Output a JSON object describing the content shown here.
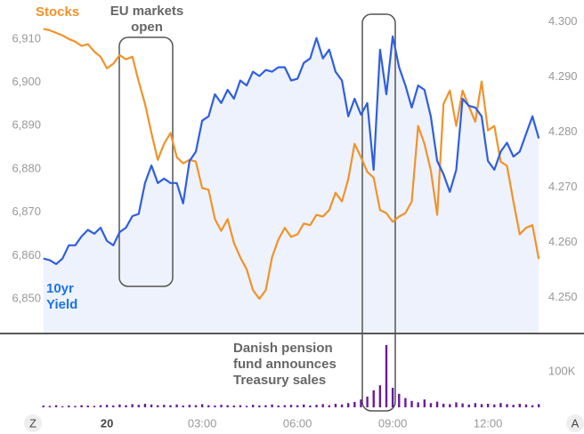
{
  "chart_data": [
    {
      "type": "line",
      "annotations": [
        "EU markets open",
        "Danish pension fund announces Treasury sales"
      ],
      "x": [
        -2.0,
        -1.8,
        -1.6,
        -1.4,
        -1.2,
        -1.0,
        -0.8,
        -0.6,
        -0.4,
        -0.2,
        0,
        0.2,
        0.4,
        0.6,
        0.8,
        1.0,
        1.2,
        1.4,
        1.6,
        1.8,
        2.0,
        2.2,
        2.4,
        2.6,
        2.8,
        3.0,
        3.2,
        3.4,
        3.6,
        3.8,
        4.0,
        4.2,
        4.4,
        4.6,
        4.8,
        5.0,
        5.2,
        5.4,
        5.6,
        5.8,
        6.0,
        6.2,
        6.4,
        6.6,
        6.8,
        7.0,
        7.2,
        7.4,
        7.6,
        7.8,
        8.0,
        8.2,
        8.4,
        8.6,
        8.8,
        9.0,
        9.2,
        9.4,
        9.6,
        9.8,
        10.0,
        10.2,
        10.4,
        10.6,
        10.8,
        11.0,
        11.2,
        11.4,
        11.6,
        11.8,
        12.0,
        12.2,
        12.4,
        12.6,
        12.8,
        13.0,
        13.2,
        13.4,
        13.6
      ],
      "xlim": [
        -2.05,
        13.65
      ],
      "xticks": [
        {
          "value": 0,
          "label": "20"
        },
        {
          "value": 3,
          "label": "03:00"
        },
        {
          "value": 6,
          "label": "06:00"
        },
        {
          "value": 9,
          "label": "09:00"
        },
        {
          "value": 12,
          "label": "12:00"
        }
      ],
      "series": [
        {
          "name": "Stocks",
          "color": "#f0932a",
          "axis": "y",
          "values": [
            6912.3,
            6912.0,
            6911.4,
            6910.8,
            6910.0,
            6909.4,
            6908.4,
            6908.8,
            6907.1,
            6905.9,
            6903.2,
            6904.3,
            6906.3,
            6905.3,
            6905.9,
            6900.2,
            6895.0,
            6888.3,
            6882.1,
            6885.8,
            6888.3,
            6882.7,
            6881.3,
            6882.1,
            6881.7,
            6875.6,
            6875.2,
            6868.4,
            6865.7,
            6868.4,
            6862.9,
            6859.6,
            6856.8,
            6852.0,
            6850.0,
            6852.0,
            6859.6,
            6863.7,
            6866.4,
            6864.3,
            6864.9,
            6867.4,
            6867.0,
            6869.4,
            6869.0,
            6870.5,
            6874.5,
            6872.5,
            6877.6,
            6885.8,
            6882.7,
            6879.3,
            6878.0,
            6870.5,
            6869.8,
            6867.8,
            6869.0,
            6869.8,
            6872.5,
            6889.9,
            6885.8,
            6879.7,
            6869.4,
            6895.0,
            6898.1,
            6889.9,
            6898.1,
            6894.4,
            6890.9,
            6900.2,
            6888.9,
            6889.9,
            6881.7,
            6880.7,
            6872.5,
            6864.9,
            6866.4,
            6867.0,
            6859.2
          ]
        },
        {
          "name": "10yr Yield",
          "color": "#2f5ee0",
          "axis": "y2",
          "fill": "#eef2fc",
          "values": [
            4.2571,
            4.2568,
            4.2561,
            4.2571,
            4.2595,
            4.2595,
            4.2611,
            4.2623,
            4.2616,
            4.2627,
            4.2603,
            4.2595,
            4.2619,
            4.2627,
            4.2648,
            4.2652,
            4.2708,
            4.274,
            4.2708,
            4.2716,
            4.2708,
            4.2708,
            4.2671,
            4.2748,
            4.2765,
            4.2821,
            4.2829,
            4.2869,
            4.2853,
            4.2877,
            4.2861,
            4.2894,
            4.2885,
            4.291,
            4.2902,
            4.2913,
            4.291,
            4.2918,
            4.2918,
            4.2894,
            4.2897,
            4.2926,
            4.2934,
            4.2971,
            4.2934,
            4.295,
            4.291,
            4.2894,
            4.2829,
            4.2861,
            4.2832,
            4.2853,
            4.2732,
            4.295,
            4.2869,
            4.2974,
            4.2918,
            4.2885,
            4.2845,
            4.2885,
            4.2877,
            4.2829,
            4.2748,
            4.2724,
            4.2692,
            4.2732,
            4.2861,
            4.2848,
            4.2845,
            4.2829,
            4.2748,
            4.2732,
            4.2765,
            4.2781,
            4.2756,
            4.2765,
            4.2797,
            4.2829,
            4.2789
          ]
        }
      ],
      "ylim": [
        6842,
        6919
      ],
      "yticks": [
        {
          "value": 6850,
          "label": "6,850"
        },
        {
          "value": 6860,
          "label": "6,860"
        },
        {
          "value": 6870,
          "label": "6,870"
        },
        {
          "value": 6880,
          "label": "6,880"
        },
        {
          "value": 6890,
          "label": "6,890"
        },
        {
          "value": 6900,
          "label": "6,900"
        },
        {
          "value": 6910,
          "label": "6,910"
        }
      ],
      "y2lim": [
        4.2435,
        4.304
      ],
      "y2ticks": [
        {
          "value": 4.25,
          "label": "4.250"
        },
        {
          "value": 4.26,
          "label": "4.260"
        },
        {
          "value": 4.27,
          "label": "4.270"
        },
        {
          "value": 4.28,
          "label": "4.280"
        },
        {
          "value": 4.29,
          "label": "4.290"
        },
        {
          "value": 4.3,
          "label": "4.300"
        }
      ]
    },
    {
      "type": "bar",
      "color": "#6a1b9a",
      "values": [
        5000,
        4000,
        6000,
        3000,
        5000,
        4000,
        6000,
        5000,
        4000,
        6000,
        7000,
        5000,
        8000,
        6000,
        9000,
        7000,
        10000,
        8000,
        6000,
        7000,
        6000,
        8000,
        5000,
        7000,
        6000,
        9000,
        6000,
        5000,
        7000,
        6000,
        5000,
        6000,
        4000,
        7000,
        5000,
        6000,
        8000,
        5000,
        6000,
        7000,
        6000,
        8000,
        5000,
        7000,
        9000,
        6000,
        10000,
        8000,
        12000,
        15000,
        22000,
        30000,
        48000,
        62000,
        175000,
        55000,
        38000,
        26000,
        18000,
        14000,
        22000,
        12000,
        16000,
        10000,
        9000,
        14000,
        11000,
        8000,
        12000,
        9000,
        10000,
        8000,
        12000,
        9000,
        7000,
        10000,
        8000,
        6000,
        9000
      ],
      "ylim": [
        0,
        200000
      ],
      "yticks": [
        {
          "value": 100000,
          "label": "100K"
        }
      ]
    }
  ],
  "nav_buttons": [
    "Z",
    "A"
  ]
}
